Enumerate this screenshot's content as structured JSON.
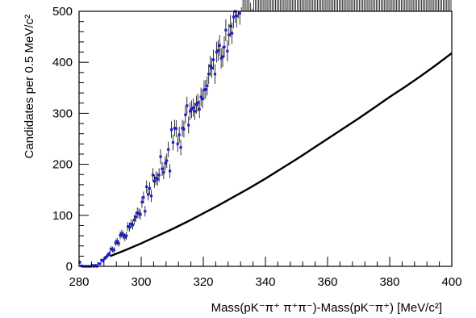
{
  "chart_data": {
    "type": "scatter",
    "xlabel": "Mass(pK⁻π⁺ π⁺π⁻)-Mass(pK⁻π⁺) [MeV/c²]",
    "ylabel": "Candidates per 0.5 MeV/c²",
    "xlim": [
      280,
      400
    ],
    "ylim": [
      0,
      500
    ],
    "x_ticks": [
      280,
      300,
      320,
      340,
      360,
      380,
      400
    ],
    "y_ticks": [
      0,
      100,
      200,
      300,
      400,
      500
    ],
    "x_tick_labels": [
      "280",
      "300",
      "320",
      "340",
      "360",
      "380",
      "400"
    ],
    "y_tick_labels": [
      "0",
      "100",
      "200",
      "300",
      "400",
      "500"
    ],
    "grid": false,
    "legend": "none",
    "colors": {
      "points": "#1f1fd9",
      "error_bars": "#000000",
      "fit": "#000000",
      "frame": "#000000"
    },
    "bin_width": 0.5,
    "data_generation": {
      "threshold": 284.8,
      "x_start": 280.25,
      "amplitude": 3.42,
      "exponent": 1.3,
      "seed": 7
    },
    "fit": {
      "name": "fit",
      "x": [
        290,
        295,
        300,
        305,
        310,
        315,
        320,
        325,
        330,
        335,
        340,
        345,
        350,
        355,
        360,
        365,
        370,
        375,
        380,
        385,
        390,
        395,
        400
      ],
      "y": [
        20,
        32,
        45,
        59,
        73,
        88,
        104,
        120,
        137,
        154,
        172,
        191,
        210,
        230,
        250,
        270,
        290,
        311,
        332,
        352,
        373,
        395,
        418
      ]
    }
  }
}
